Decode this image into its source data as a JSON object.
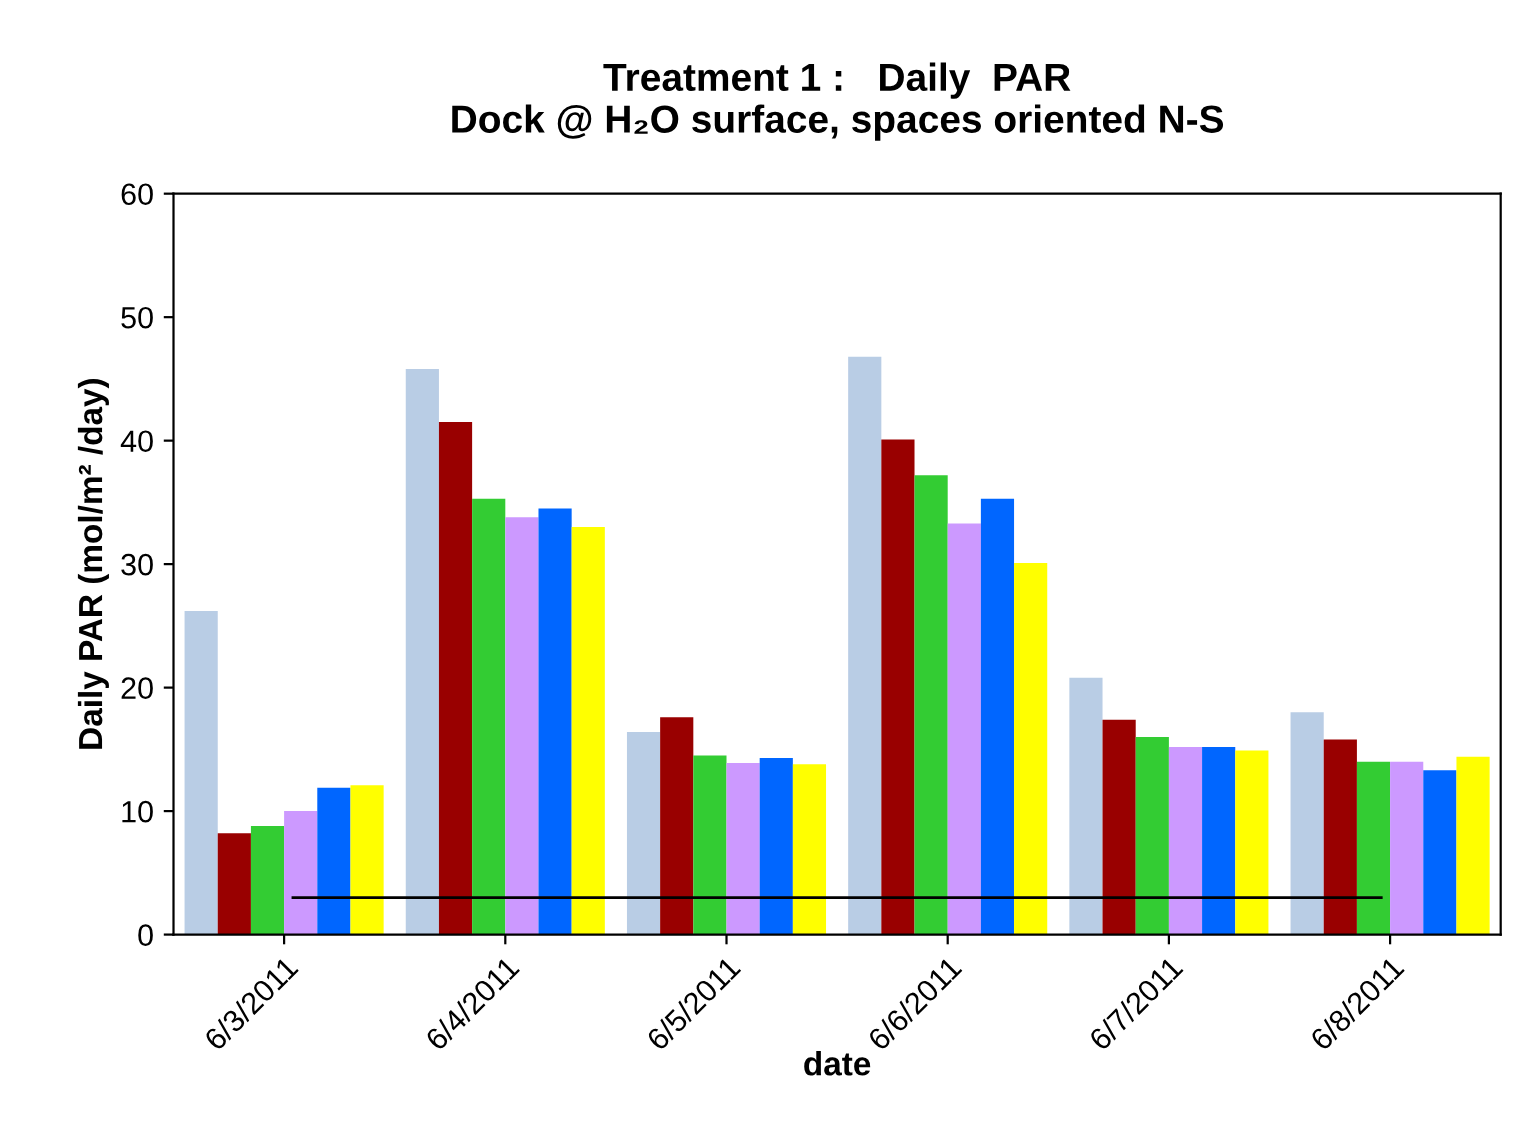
{
  "chart_data": {
    "type": "bar",
    "title": "Treatment 1 :   Daily  PAR\nDock @ H₂O surface, spaces oriented N-S",
    "xlabel": "date",
    "ylabel": "Daily PAR (mol/m² /day)",
    "categories": [
      "6/3/2011",
      "6/4/2011",
      "6/5/2011",
      "6/6/2011",
      "6/7/2011",
      "6/8/2011"
    ],
    "series": [
      {
        "color": "#b9cde5",
        "values": [
          26.2,
          45.8,
          16.4,
          46.8,
          20.8,
          18.0
        ]
      },
      {
        "color": "#990000",
        "values": [
          8.2,
          41.5,
          17.6,
          40.1,
          17.4,
          15.8
        ]
      },
      {
        "color": "#33cc33",
        "values": [
          8.8,
          35.3,
          14.5,
          37.2,
          16.0,
          14.0
        ]
      },
      {
        "color": "#cc99ff",
        "values": [
          10.0,
          33.8,
          13.9,
          33.3,
          15.2,
          14.0
        ]
      },
      {
        "color": "#0066ff",
        "values": [
          11.9,
          34.5,
          14.3,
          35.3,
          15.2,
          13.3
        ]
      },
      {
        "color": "#ffff00",
        "values": [
          12.1,
          33.0,
          13.8,
          30.1,
          14.9,
          14.4
        ]
      }
    ],
    "ylim": [
      0,
      60
    ],
    "yticks": [
      0,
      10,
      20,
      30,
      40,
      50,
      60
    ],
    "grid": false,
    "legend": false,
    "ref_lines": [
      {
        "axis": "y",
        "value": 3,
        "color": "#000000"
      }
    ]
  }
}
